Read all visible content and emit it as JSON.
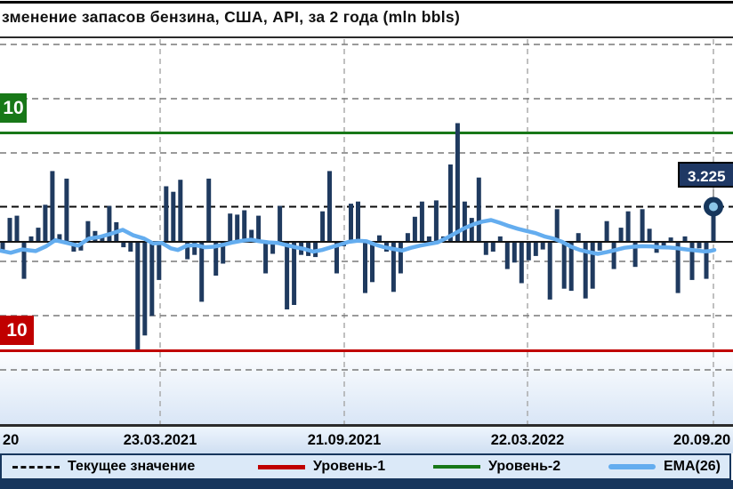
{
  "title": "зменение  запасов бензина,  США,  API,  за 2 года (mln  bbls)",
  "chart_data": {
    "type": "bar",
    "title": "зменение  запасов бензина,  США,  API,  за 2 года (mln  bbls)",
    "unit": "mln bbls",
    "x_tick_labels": [
      "20",
      "23.03.2021",
      "21.09.2021",
      "22.03.2022",
      "20.09.20"
    ],
    "x_tick_weeks_spacing": 26,
    "ylim": [
      -16.7,
      18.6
    ],
    "grid": "dashed horizontal every 5 units, dashed vertical at tick dates",
    "bar_values": [
      -0.7,
      2.2,
      2.4,
      -3.4,
      0.5,
      1.3,
      3.4,
      6.5,
      0.7,
      5.8,
      -0.9,
      -0.8,
      1.9,
      1.0,
      0.6,
      3.3,
      1.8,
      -0.5,
      -0.9,
      -9.9,
      -8.6,
      -6.8,
      -3.5,
      5.1,
      4.6,
      5.7,
      -1.6,
      -1.2,
      -5.5,
      5.8,
      -3.1,
      -2.0,
      2.6,
      2.5,
      2.9,
      1.1,
      2.4,
      -2.9,
      -1.1,
      3.3,
      -6.2,
      -5.8,
      -1.2,
      -1.3,
      -1.4,
      2.8,
      6.5,
      -2.9,
      -0.4,
      3.5,
      3.7,
      -4.7,
      -3.7,
      0.6,
      -0.9,
      -4.6,
      -2.9,
      0.8,
      2.3,
      3.7,
      0.5,
      3.8,
      0.5,
      7.1,
      10.9,
      3.7,
      2.2,
      5.9,
      -1.2,
      -0.9,
      0.5,
      -2.5,
      -1.9,
      -3.8,
      -1.7,
      -1.3,
      -0.7,
      -5.3,
      3.0,
      -4.3,
      -4.5,
      0.8,
      -5.2,
      -4.3,
      -0.8,
      1.9,
      -2.5,
      1.3,
      2.8,
      -2.3,
      3.0,
      1.2,
      -1.0,
      -0.6,
      0.4,
      -4.7,
      0.5,
      -3.5,
      -0.6,
      -3.4,
      3.225
    ],
    "current_value": 3.225,
    "current_value_label": "3.225",
    "levels": {
      "level1": {
        "name": "Уровень-1",
        "label": "10",
        "value": -10,
        "color": "#C00000"
      },
      "level2": {
        "name": "Уровень-2",
        "label": "10",
        "value": 10,
        "color": "#187818"
      }
    },
    "ema": {
      "name": "EMA(26)",
      "color": "#64ADEF",
      "points": [
        [
          0,
          -0.8
        ],
        [
          12,
          -1.0
        ],
        [
          25,
          -0.7
        ],
        [
          40,
          -0.85
        ],
        [
          52,
          -0.4
        ],
        [
          62,
          0.15
        ],
        [
          75,
          -0.1
        ],
        [
          88,
          -0.35
        ],
        [
          100,
          0.3
        ],
        [
          112,
          0.45
        ],
        [
          125,
          0.75
        ],
        [
          138,
          1.1
        ],
        [
          150,
          0.6
        ],
        [
          162,
          0.3
        ],
        [
          172,
          -0.15
        ],
        [
          182,
          -0.1
        ],
        [
          192,
          -0.6
        ],
        [
          200,
          -0.75
        ],
        [
          210,
          -0.35
        ],
        [
          220,
          -0.3
        ],
        [
          230,
          -0.5
        ],
        [
          240,
          -0.45
        ],
        [
          252,
          -0.25
        ],
        [
          262,
          -0.05
        ],
        [
          272,
          0.1
        ],
        [
          282,
          0.2
        ],
        [
          292,
          0.05
        ],
        [
          302,
          -0.05
        ],
        [
          312,
          -0.1
        ],
        [
          322,
          -0.3
        ],
        [
          332,
          -0.5
        ],
        [
          342,
          -0.65
        ],
        [
          352,
          -0.9
        ],
        [
          362,
          -0.75
        ],
        [
          372,
          -0.5
        ],
        [
          382,
          -0.25
        ],
        [
          392,
          0.0
        ],
        [
          402,
          0.1
        ],
        [
          412,
          0.05
        ],
        [
          422,
          -0.25
        ],
        [
          432,
          -0.5
        ],
        [
          442,
          -0.65
        ],
        [
          452,
          -0.8
        ],
        [
          462,
          -0.55
        ],
        [
          472,
          -0.35
        ],
        [
          482,
          -0.2
        ],
        [
          492,
          -0.05
        ],
        [
          502,
          0.35
        ],
        [
          512,
          0.8
        ],
        [
          522,
          1.25
        ],
        [
          532,
          1.6
        ],
        [
          542,
          1.85
        ],
        [
          552,
          2.0
        ],
        [
          562,
          1.75
        ],
        [
          572,
          1.45
        ],
        [
          582,
          1.2
        ],
        [
          592,
          1.0
        ],
        [
          602,
          0.8
        ],
        [
          612,
          0.5
        ],
        [
          622,
          0.3
        ],
        [
          632,
          0.0
        ],
        [
          642,
          -0.45
        ],
        [
          652,
          -0.75
        ],
        [
          662,
          -0.95
        ],
        [
          672,
          -1.1
        ],
        [
          682,
          -0.95
        ],
        [
          692,
          -0.75
        ],
        [
          702,
          -0.55
        ],
        [
          712,
          -0.45
        ],
        [
          722,
          -0.4
        ],
        [
          732,
          -0.42
        ],
        [
          742,
          -0.5
        ],
        [
          752,
          -0.52
        ],
        [
          762,
          -0.6
        ],
        [
          772,
          -0.7
        ],
        [
          782,
          -0.78
        ],
        [
          792,
          -0.88
        ],
        [
          798,
          -0.85
        ],
        [
          803,
          -0.75
        ]
      ]
    },
    "bar_color": "#1F3A5F"
  },
  "legend": {
    "items": [
      {
        "label": "Текущее значение",
        "style": "dashed",
        "color": "#111111"
      },
      {
        "label": "Уровень-1",
        "style": "solid",
        "color": "#C00000"
      },
      {
        "label": "Уровень-2",
        "style": "solid",
        "color": "#187818"
      },
      {
        "label": "EMA(26)",
        "style": "solid",
        "color": "#64ADEF"
      }
    ]
  },
  "colors": {
    "bars": "#1F3A5F",
    "ema_line": "#64ADEF",
    "level1_line": "#C00000",
    "level2_line": "#187818",
    "current_badge_bg": "#1F3864",
    "footer": "#17365D",
    "axis_band_bg": "#d8e5f4",
    "legend_bg": "#dbe9f8"
  }
}
